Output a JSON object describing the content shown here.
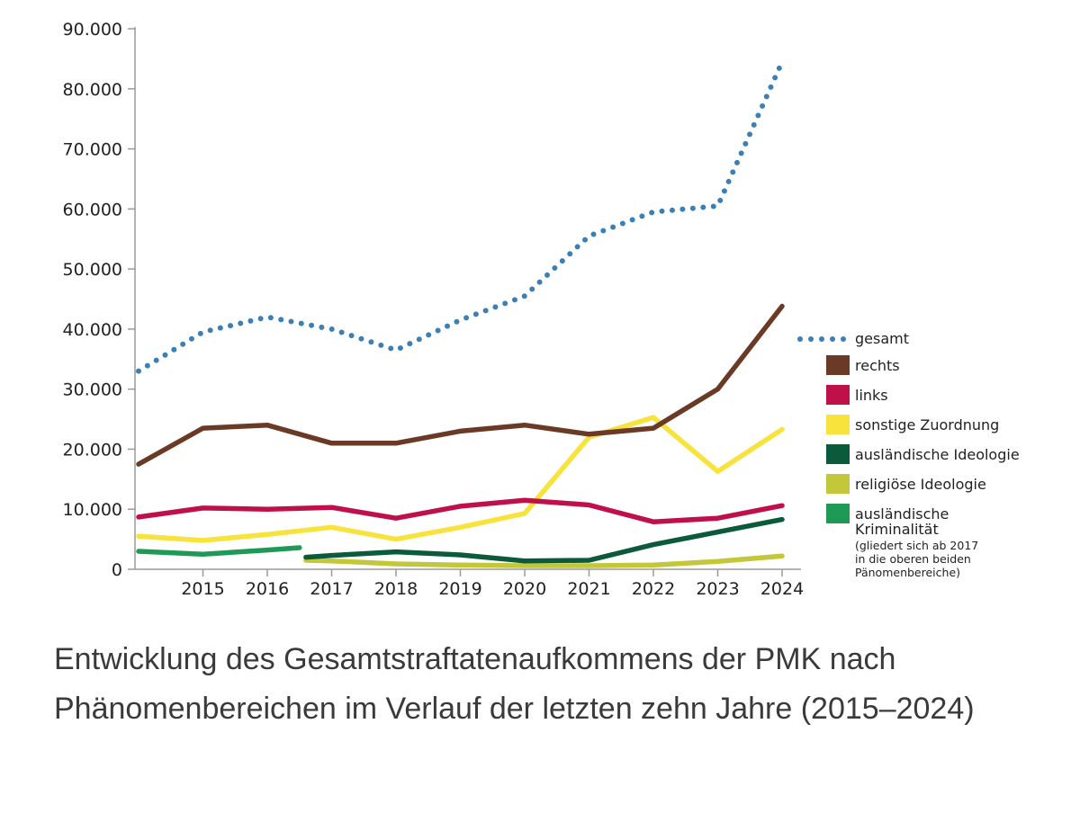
{
  "caption": "Entwicklung des Gesamtstraftatenaufkommens der PMK nach Phänomenbereichen im Verlauf der letzten zehn Jahre (2015–2024)",
  "chart_data": {
    "type": "line",
    "title": "",
    "xlabel": "",
    "ylabel": "",
    "ylim": [
      0,
      90000
    ],
    "y_ticks": [
      {
        "value": 0,
        "label": "0"
      },
      {
        "value": 10000,
        "label": "10.000"
      },
      {
        "value": 20000,
        "label": "20.000"
      },
      {
        "value": 30000,
        "label": "30.000"
      },
      {
        "value": 40000,
        "label": "40.000"
      },
      {
        "value": 50000,
        "label": "50.000"
      },
      {
        "value": 60000,
        "label": "60.000"
      },
      {
        "value": 70000,
        "label": "70.000"
      },
      {
        "value": 80000,
        "label": "80.000"
      },
      {
        "value": 90000,
        "label": "90.000"
      }
    ],
    "x_ticks": [
      "2015",
      "2016",
      "2017",
      "2018",
      "2019",
      "2020",
      "2021",
      "2022",
      "2023",
      "2024"
    ],
    "xlim": [
      2014,
      2024
    ],
    "series": [
      {
        "name": "gesamt",
        "color": "#3b7fb5",
        "style": "dotted",
        "x": [
          2014,
          2015,
          2016,
          2017,
          2018,
          2019,
          2020,
          2021,
          2022,
          2023,
          2024
        ],
        "values": [
          33000,
          39500,
          42000,
          40000,
          36500,
          41500,
          45500,
          55500,
          59500,
          60500,
          84500
        ]
      },
      {
        "name": "rechts",
        "color": "#6b3a26",
        "style": "solid",
        "x": [
          2014,
          2015,
          2016,
          2017,
          2018,
          2019,
          2020,
          2021,
          2022,
          2023,
          2024
        ],
        "values": [
          17500,
          23500,
          24000,
          21000,
          21000,
          23000,
          24000,
          22500,
          23500,
          30000,
          43800
        ]
      },
      {
        "name": "links",
        "color": "#c0104a",
        "style": "solid",
        "x": [
          2014,
          2015,
          2016,
          2017,
          2018,
          2019,
          2020,
          2021,
          2022,
          2023,
          2024
        ],
        "values": [
          8700,
          10200,
          10000,
          10300,
          8500,
          10500,
          11500,
          10700,
          7900,
          8500,
          10600
        ]
      },
      {
        "name": "sonstige Zuordnung",
        "color": "#f7e33c",
        "style": "solid",
        "x": [
          2014,
          2015,
          2016,
          2017,
          2018,
          2019,
          2020,
          2021,
          2022,
          2023,
          2024
        ],
        "values": [
          5500,
          4800,
          5800,
          7000,
          5000,
          7000,
          9300,
          22000,
          25300,
          16300,
          23300
        ]
      },
      {
        "name": "ausländische Ideologie",
        "color": "#0b5a3c",
        "style": "solid",
        "x": [
          2016.6,
          2017,
          2018,
          2019,
          2020,
          2021,
          2022,
          2023,
          2024
        ],
        "values": [
          2000,
          2300,
          2900,
          2400,
          1400,
          1500,
          4100,
          6200,
          8300
        ]
      },
      {
        "name": "religiöse Ideologie",
        "color": "#c2c83a",
        "style": "solid",
        "x": [
          2016.6,
          2017,
          2018,
          2019,
          2020,
          2021,
          2022,
          2023,
          2024
        ],
        "values": [
          1500,
          1400,
          900,
          700,
          600,
          600,
          700,
          1300,
          2200
        ]
      },
      {
        "name": "ausländische Kriminalität",
        "color": "#1e9a56",
        "style": "solid",
        "x": [
          2014,
          2015,
          2016,
          2016.5
        ],
        "values": [
          3000,
          2500,
          3200,
          3600
        ]
      }
    ],
    "legend": {
      "position": "right",
      "items": [
        {
          "label": "gesamt",
          "color": "#3b7fb5",
          "marker": "dots"
        },
        {
          "label": "rechts",
          "color": "#6b3a26",
          "marker": "box"
        },
        {
          "label": "links",
          "color": "#c0104a",
          "marker": "box"
        },
        {
          "label": "sonstige Zuordnung",
          "color": "#f7e33c",
          "marker": "box"
        },
        {
          "label": "ausländische Ideologie",
          "color": "#0b5a3c",
          "marker": "box"
        },
        {
          "label": "religiöse Ideologie",
          "color": "#c2c83a",
          "marker": "box"
        },
        {
          "label": "ausländische Kriminalität",
          "color": "#1e9a56",
          "marker": "box",
          "label_lines": [
            "ausländische",
            "Kriminalität"
          ],
          "note_lines": [
            "(gliedert sich ab 2017",
            "in die oberen beiden",
            "Pänomenbereiche)"
          ]
        }
      ]
    }
  }
}
